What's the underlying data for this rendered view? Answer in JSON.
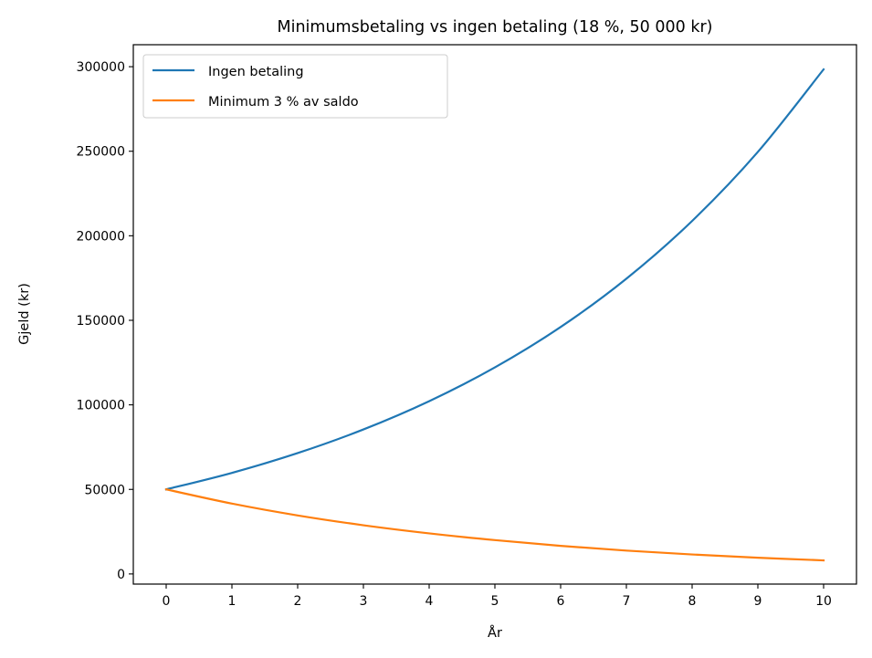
{
  "chart_data": {
    "type": "line",
    "title": "Minimumsbetaling vs ingen betaling (18 %, 50 000 kr)",
    "xlabel": "År",
    "ylabel": "Gjeld (kr)",
    "xlim": [
      -0.5,
      10.5
    ],
    "ylim": [
      -6000,
      313000
    ],
    "xticks": [
      0,
      1,
      2,
      3,
      4,
      5,
      6,
      7,
      8,
      9,
      10
    ],
    "yticks": [
      0,
      50000,
      100000,
      150000,
      200000,
      250000,
      300000
    ],
    "grid": false,
    "legend_position": "upper-left",
    "x": [
      0,
      1,
      2,
      3,
      4,
      5,
      6,
      7,
      8,
      9,
      10
    ],
    "series": [
      {
        "name": "Ingen betaling",
        "color": "#1f77b4",
        "values": [
          50000,
          59780,
          71474,
          85454,
          102169,
          122153,
          146046,
          174613,
          208768,
          249603,
          298426
        ]
      },
      {
        "name": "Minimum 3 % av saldo",
        "color": "#ff7f0e",
        "values": [
          50000,
          41600,
          34600,
          28800,
          24000,
          20000,
          16600,
          13800,
          11500,
          9600,
          8000
        ]
      }
    ]
  }
}
